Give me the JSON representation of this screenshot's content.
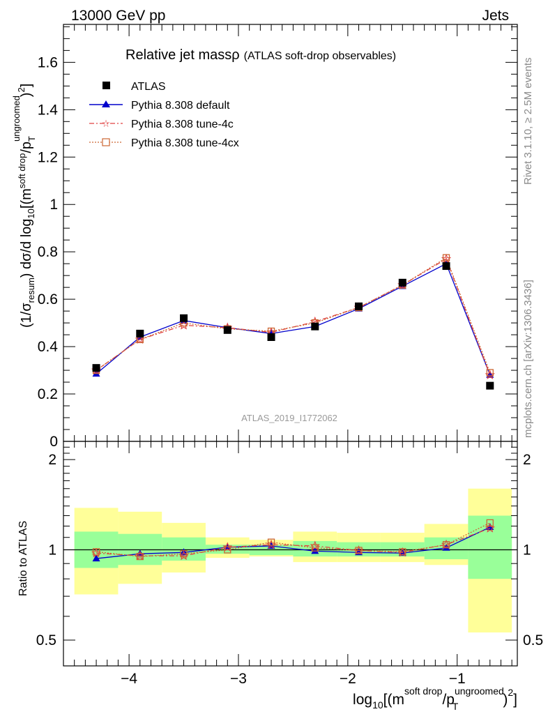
{
  "header": {
    "left": "13000 GeV pp",
    "right": "Jets"
  },
  "plot": {
    "title": "Relative jet massρ",
    "subtitle": "(ATLAS soft-drop observables)",
    "ylabel_main": "(1/σresum) dσ/d log10[(m soft drop/pT ungroomed)2]",
    "ylabel_ratio": "Ratio to ATLAS",
    "xlabel": "log10[(m soft drop/pT ungroomed)2]",
    "watermark": "ATLAS_2019_I1772062",
    "side_text_top": "Rivet 3.1.10, ≥ 2.5M events",
    "side_text_bottom": "mcplots.cern.ch [arXiv:1306.3436]"
  },
  "chart_data": {
    "type": "scatter",
    "xlabel": "log10[(m soft drop/pT ungroomed)2]",
    "ylabel": "(1/σresum) dσ/d log10[(m soft drop/pT ungroomed)2]",
    "xlim": [
      -4.6,
      -0.45
    ],
    "ylim": [
      0,
      1.76
    ],
    "ratio_ylim": [
      0.41,
      2.3
    ],
    "ratio_scale": "log",
    "x_ticks": [
      "−4",
      "−3",
      "−2",
      "−1"
    ],
    "y_ticks": [
      "0",
      "0.2",
      "0.4",
      "0.6",
      "0.8",
      "1",
      "1.2",
      "1.4",
      "1.6"
    ],
    "ratio_ticks": [
      "0.5",
      "1",
      "2"
    ],
    "bin_edges": [
      -4.5,
      -4.1,
      -3.7,
      -3.3,
      -2.9,
      -2.5,
      -2.1,
      -1.7,
      -1.3,
      -0.9,
      -0.5
    ],
    "x": [
      -4.3,
      -3.9,
      -3.5,
      -3.1,
      -2.7,
      -2.3,
      -1.9,
      -1.5,
      -1.1,
      -0.7
    ],
    "legend_position": "top-left",
    "series": [
      {
        "name": "ATLAS",
        "color": "#000000",
        "marker": "square",
        "values": [
          0.31,
          0.455,
          0.52,
          0.47,
          0.44,
          0.485,
          0.57,
          0.67,
          0.74,
          0.235
        ],
        "ratio": [
          1,
          1,
          1,
          1,
          1,
          1,
          1,
          1,
          1,
          1
        ]
      },
      {
        "name": "Pythia 8.308 default",
        "color": "#0000cc",
        "marker": "triangle",
        "line": "solid",
        "values": [
          0.285,
          0.44,
          0.51,
          0.48,
          0.455,
          0.485,
          0.56,
          0.655,
          0.75,
          0.28
        ],
        "ratio": [
          0.935,
          0.97,
          0.98,
          1.02,
          1.03,
          0.99,
          0.98,
          0.975,
          1.015,
          1.19
        ]
      },
      {
        "name": "Pythia 8.308 tune-4c",
        "color": "#e04040",
        "marker": "star",
        "line": "dashdot",
        "values": [
          0.3,
          0.43,
          0.49,
          0.48,
          0.46,
          0.505,
          0.565,
          0.66,
          0.77,
          0.28
        ],
        "ratio": [
          0.975,
          0.955,
          0.955,
          1.02,
          1.04,
          1.03,
          0.995,
          0.98,
          1.04,
          1.18
        ]
      },
      {
        "name": "Pythia 8.308 tune-4cx",
        "color": "#cc6633",
        "marker": "open-square",
        "line": "dotted",
        "values": [
          0.3,
          0.43,
          0.5,
          0.475,
          0.465,
          0.5,
          0.565,
          0.66,
          0.775,
          0.29
        ],
        "ratio": [
          0.985,
          0.95,
          0.97,
          1.0,
          1.06,
          1.015,
          0.995,
          0.985,
          1.04,
          1.23
        ]
      }
    ],
    "uncertainty_bands": {
      "green": [
        [
          0.87,
          1.15
        ],
        [
          0.89,
          1.13
        ],
        [
          0.92,
          1.1
        ],
        [
          0.97,
          1.04
        ],
        [
          0.96,
          1.04
        ],
        [
          0.95,
          1.07
        ],
        [
          0.95,
          1.06
        ],
        [
          0.95,
          1.06
        ],
        [
          0.93,
          1.1
        ],
        [
          0.8,
          1.3
        ]
      ],
      "yellow": [
        [
          0.71,
          1.38
        ],
        [
          0.77,
          1.34
        ],
        [
          0.84,
          1.23
        ],
        [
          0.94,
          1.1
        ],
        [
          0.95,
          1.08
        ],
        [
          0.91,
          1.15
        ],
        [
          0.91,
          1.14
        ],
        [
          0.91,
          1.14
        ],
        [
          0.89,
          1.22
        ],
        [
          0.53,
          1.6
        ]
      ],
      "green_color": "#99ff99",
      "yellow_color": "#ffff99"
    }
  }
}
